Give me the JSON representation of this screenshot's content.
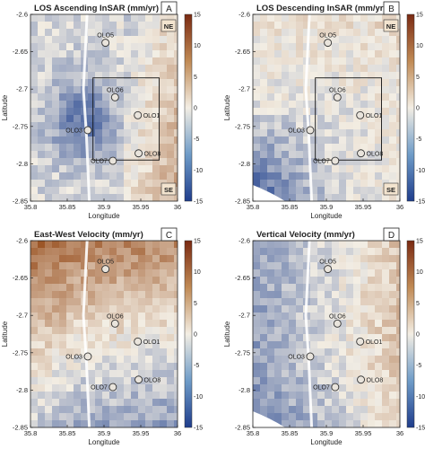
{
  "colors": {
    "cmap_neg": "#1f3d8c",
    "cmap_mid": "#f3eee4",
    "cmap_pos": "#7a2a12",
    "frame": "#222222",
    "marker_fill": "#e9e4dc",
    "marker_stroke": "#333333"
  },
  "chart_data": [
    {
      "type": "heatmap",
      "panel_letter": "A",
      "title": "LOS Ascending InSAR (mm/yr)",
      "xlabel": "Longitude",
      "ylabel": "Latitude",
      "xlim": [
        35.8,
        36.0
      ],
      "ylim": [
        -2.85,
        -2.6
      ],
      "x_ticks": [
        35.8,
        35.85,
        35.9,
        35.95,
        36
      ],
      "x_tick_labels": [
        "35.8",
        "35.85",
        "35.9",
        "35.95",
        "36"
      ],
      "y_ticks": [
        -2.6,
        -2.65,
        -2.7,
        -2.75,
        -2.8,
        -2.85
      ],
      "y_tick_labels": [
        "-2.6",
        "-2.65",
        "-2.7",
        "-2.75",
        "-2.8",
        "-2.85"
      ],
      "colorbar": {
        "min": -15,
        "max": 15,
        "ticks": [
          "15",
          "10",
          "5",
          "0",
          "-5",
          "-10",
          "-15"
        ]
      },
      "corner_labels": [
        "NE",
        "SE"
      ],
      "box": {
        "x": [
          35.885,
          35.975
        ],
        "y": [
          -2.795,
          -2.685
        ]
      },
      "stations": [
        {
          "name": "OLO5",
          "lon": 35.902,
          "lat": -2.638,
          "label_side": "top"
        },
        {
          "name": "OLO6",
          "lon": 35.915,
          "lat": -2.711,
          "label_side": "top"
        },
        {
          "name": "OLO1",
          "lon": 35.946,
          "lat": -2.735,
          "label_side": "right"
        },
        {
          "name": "OLO3",
          "lon": 35.878,
          "lat": -2.755,
          "label_side": "left"
        },
        {
          "name": "OLO8",
          "lon": 35.947,
          "lat": -2.786,
          "label_side": "right"
        },
        {
          "name": "OLO7",
          "lon": 35.912,
          "lat": -2.796,
          "label_side": "left"
        }
      ]
    },
    {
      "type": "heatmap",
      "panel_letter": "B",
      "title": "LOS Descending InSAR (mm/yr)",
      "xlabel": "Longitude",
      "ylabel": "Latitude",
      "xlim": [
        35.8,
        36.0
      ],
      "ylim": [
        -2.85,
        -2.6
      ],
      "x_ticks": [
        35.8,
        35.85,
        35.9,
        35.95,
        36
      ],
      "x_tick_labels": [
        "35.8",
        "35.85",
        "35.9",
        "35.95",
        "36"
      ],
      "y_ticks": [
        -2.6,
        -2.65,
        -2.7,
        -2.75,
        -2.8,
        -2.85
      ],
      "y_tick_labels": [
        "-2.6",
        "-2.65",
        "-2.7",
        "-2.75",
        "-2.8",
        "-2.85"
      ],
      "colorbar": {
        "min": -15,
        "max": 15,
        "ticks": [
          "15",
          "10",
          "5",
          "0",
          "-5",
          "-10",
          "-15"
        ]
      },
      "corner_labels": [
        "NE",
        "SE"
      ],
      "box": {
        "x": [
          35.885,
          35.975
        ],
        "y": [
          -2.795,
          -2.685
        ]
      },
      "stations": [
        {
          "name": "OLO5",
          "lon": 35.902,
          "lat": -2.638,
          "label_side": "top"
        },
        {
          "name": "OLO6",
          "lon": 35.915,
          "lat": -2.711,
          "label_side": "top"
        },
        {
          "name": "OLO1",
          "lon": 35.946,
          "lat": -2.735,
          "label_side": "right"
        },
        {
          "name": "OLO3",
          "lon": 35.878,
          "lat": -2.755,
          "label_side": "left"
        },
        {
          "name": "OLO8",
          "lon": 35.947,
          "lat": -2.786,
          "label_side": "right"
        },
        {
          "name": "OLO7",
          "lon": 35.912,
          "lat": -2.796,
          "label_side": "left"
        }
      ]
    },
    {
      "type": "heatmap",
      "panel_letter": "C",
      "title": "East-West Velocity (mm/yr)",
      "xlabel": "Longitude",
      "ylabel": "Latitude",
      "xlim": [
        35.8,
        36.0
      ],
      "ylim": [
        -2.85,
        -2.6
      ],
      "x_ticks": [
        35.8,
        35.85,
        35.9,
        35.95,
        36
      ],
      "x_tick_labels": [
        "35.8",
        "35.85",
        "35.9",
        "35.95",
        "36"
      ],
      "y_ticks": [
        -2.6,
        -2.65,
        -2.7,
        -2.75,
        -2.8,
        -2.85
      ],
      "y_tick_labels": [
        "-2.6",
        "-2.65",
        "-2.7",
        "-2.75",
        "-2.8",
        "-2.85"
      ],
      "colorbar": {
        "min": -15,
        "max": 15,
        "ticks": [
          "15",
          "10",
          "5",
          "0",
          "-5",
          "-10",
          "-15"
        ]
      },
      "corner_labels": [],
      "stations": [
        {
          "name": "OLO5",
          "lon": 35.902,
          "lat": -2.638,
          "label_side": "top"
        },
        {
          "name": "OLO6",
          "lon": 35.915,
          "lat": -2.711,
          "label_side": "top"
        },
        {
          "name": "OLO1",
          "lon": 35.946,
          "lat": -2.735,
          "label_side": "right"
        },
        {
          "name": "OLO3",
          "lon": 35.878,
          "lat": -2.755,
          "label_side": "left"
        },
        {
          "name": "OLO8",
          "lon": 35.947,
          "lat": -2.786,
          "label_side": "right"
        },
        {
          "name": "OLO7",
          "lon": 35.912,
          "lat": -2.796,
          "label_side": "left"
        }
      ]
    },
    {
      "type": "heatmap",
      "panel_letter": "D",
      "title": "Vertical Velocity (mm/yr)",
      "xlabel": "Longitude",
      "ylabel": "Latitude",
      "xlim": [
        35.8,
        36.0
      ],
      "ylim": [
        -2.85,
        -2.6
      ],
      "x_ticks": [
        35.8,
        35.85,
        35.9,
        35.95,
        36
      ],
      "x_tick_labels": [
        "35.8",
        "35.85",
        "35.9",
        "35.95",
        "36"
      ],
      "y_ticks": [
        -2.6,
        -2.65,
        -2.7,
        -2.75,
        -2.8,
        -2.85
      ],
      "y_tick_labels": [
        "-2.6",
        "-2.65",
        "-2.7",
        "-2.75",
        "-2.8",
        "-2.85"
      ],
      "colorbar": {
        "min": -15,
        "max": 15,
        "ticks": [
          "15",
          "10",
          "5",
          "0",
          "-5",
          "-10",
          "-15"
        ]
      },
      "corner_labels": [],
      "stations": [
        {
          "name": "OLO5",
          "lon": 35.902,
          "lat": -2.638,
          "label_side": "top"
        },
        {
          "name": "OLO6",
          "lon": 35.915,
          "lat": -2.711,
          "label_side": "top"
        },
        {
          "name": "OLO1",
          "lon": 35.946,
          "lat": -2.735,
          "label_side": "right"
        },
        {
          "name": "OLO3",
          "lon": 35.878,
          "lat": -2.755,
          "label_side": "left"
        },
        {
          "name": "OLO8",
          "lon": 35.947,
          "lat": -2.786,
          "label_side": "right"
        },
        {
          "name": "OLO7",
          "lon": 35.912,
          "lat": -2.796,
          "label_side": "left"
        }
      ]
    }
  ]
}
